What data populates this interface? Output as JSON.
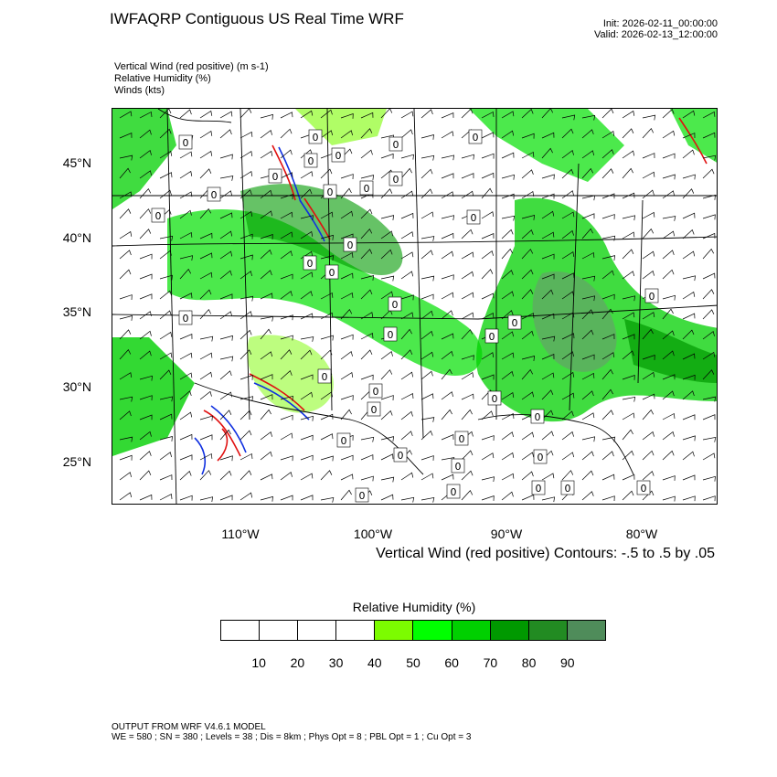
{
  "header": {
    "title": "IWFAQRP Contiguous US Real Time WRF",
    "init": "Init: 2026-02-11_00:00:00",
    "valid": "Valid: 2026-02-13_12:00:00"
  },
  "fields": [
    "Vertical Wind (red positive)   (m s-1)",
    "Relative Humidity   (%)",
    "Winds   (kts)"
  ],
  "axes": {
    "lat_labels": [
      "45°N",
      "40°N",
      "35°N",
      "30°N",
      "25°N"
    ],
    "lon_labels": [
      "110°W",
      "100°W",
      "90°W",
      "80°W"
    ]
  },
  "contour_note": "Vertical Wind (red positive) Contours: -.5 to .5 by .05",
  "colorbar": {
    "title": "Relative Humidity  (%)",
    "colors": [
      "#ffffff",
      "#ffffff",
      "#ffffff",
      "#ffffff",
      "#7cfc00",
      "#00ff00",
      "#00d000",
      "#009900",
      "#228b22",
      "#4f8c5a"
    ],
    "labels": [
      "10",
      "20",
      "30",
      "40",
      "50",
      "60",
      "70",
      "80",
      "90"
    ]
  },
  "map_colors": {
    "rh_light": "#7cfc00",
    "rh_mid": "#00e000",
    "rh_dark": "#009900",
    "rh_grey": "#6a9a70",
    "up_motion": "#e01010",
    "down_motion": "#1030e0"
  },
  "footer": {
    "line1": "OUTPUT FROM WRF V4.6.1 MODEL",
    "line2": "WE = 580 ; SN = 380 ; Levels = 38 ; Dis = 8km ; Phys Opt = 8 ; PBL Opt = 1 ; Cu Opt = 3"
  }
}
